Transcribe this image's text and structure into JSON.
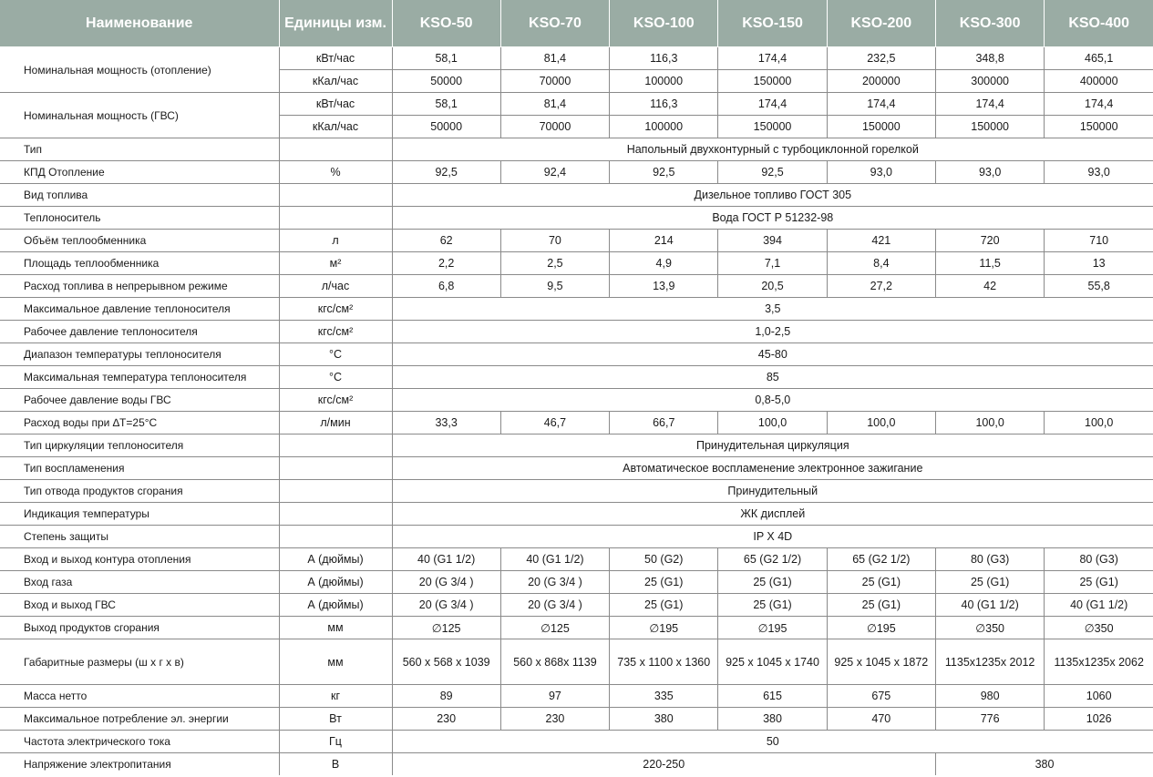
{
  "header": [
    "Наименование",
    "Единицы изм.",
    "KSO-50",
    "KSO-70",
    "KSO-100",
    "KSO-150",
    "KSO-200",
    "KSO-300",
    "KSO-400"
  ],
  "colors": {
    "header_bg": "#9aaca4",
    "header_text": "#ffffff",
    "grid": "#8a8a8a"
  },
  "rows": [
    {
      "name": "Номинальная мощность (отопление)",
      "lines": [
        {
          "unit": "кВт/час",
          "values": [
            "58,1",
            "81,4",
            "116,3",
            "174,4",
            "232,5",
            "348,8",
            "465,1"
          ]
        },
        {
          "unit": "кКал/час",
          "values": [
            "50000",
            "70000",
            "100000",
            "150000",
            "200000",
            "300000",
            "400000"
          ]
        }
      ]
    },
    {
      "name": "Номинальная мощность (ГВС)",
      "lines": [
        {
          "unit": "кВт/час",
          "values": [
            "58,1",
            "81,4",
            "116,3",
            "174,4",
            "174,4",
            "174,4",
            "174,4"
          ]
        },
        {
          "unit": "кКал/час",
          "values": [
            "50000",
            "70000",
            "100000",
            "150000",
            "150000",
            "150000",
            "150000"
          ]
        }
      ]
    },
    {
      "name": "Тип",
      "lines": [
        {
          "unit": "",
          "spans": [
            {
              "text": "Напольный двухконтурный  с турбоциклонной горелкой",
              "cols": 7
            }
          ]
        }
      ]
    },
    {
      "name": "КПД   Отопление",
      "lines": [
        {
          "unit": "%",
          "values": [
            "92,5",
            "92,4",
            "92,5",
            "92,5",
            "93,0",
            "93,0",
            "93,0"
          ]
        }
      ]
    },
    {
      "name": "Вид топлива",
      "lines": [
        {
          "unit": "",
          "spans": [
            {
              "text": "Дизельное   топливо  ГОСТ  305",
              "cols": 7
            }
          ]
        }
      ]
    },
    {
      "name": "Теплоноситель",
      "lines": [
        {
          "unit": "",
          "spans": [
            {
              "text": "Вода ГОСТ Р 51232-98",
              "cols": 7
            }
          ]
        }
      ]
    },
    {
      "name": "Объём   теплообменника",
      "lines": [
        {
          "unit": "л",
          "values": [
            "62",
            "70",
            "214",
            "394",
            "421",
            "720",
            "710"
          ]
        }
      ]
    },
    {
      "name": "Площадь теплообменника",
      "lines": [
        {
          "unit": "м²",
          "values": [
            "2,2",
            "2,5",
            "4,9",
            "7,1",
            "8,4",
            "11,5",
            "13"
          ]
        }
      ]
    },
    {
      "name": "Расход топлива  в непрерывном режиме",
      "lines": [
        {
          "unit": "л/час",
          "values": [
            "6,8",
            "9,5",
            "13,9",
            "20,5",
            "27,2",
            "42",
            "55,8"
          ]
        }
      ]
    },
    {
      "name": "Максимальное давление теплоносителя",
      "lines": [
        {
          "unit": "кгс/см²",
          "spans": [
            {
              "text": "3,5",
              "cols": 7
            }
          ]
        }
      ]
    },
    {
      "name": "Рабочее давление теплоносителя",
      "lines": [
        {
          "unit": "кгс/см²",
          "spans": [
            {
              "text": "1,0-2,5",
              "cols": 7
            }
          ]
        }
      ]
    },
    {
      "name": "Диапазон температуры теплоносителя",
      "lines": [
        {
          "unit": "°С",
          "spans": [
            {
              "text": "45-80",
              "cols": 7
            }
          ]
        }
      ]
    },
    {
      "name": "Максимальная температура теплоносителя",
      "lines": [
        {
          "unit": "°С",
          "spans": [
            {
              "text": "85",
              "cols": 7
            }
          ]
        }
      ]
    },
    {
      "name": "Рабочее давление воды ГВС",
      "lines": [
        {
          "unit": "кгс/см²",
          "spans": [
            {
              "text": "0,8-5,0",
              "cols": 7
            }
          ]
        }
      ]
    },
    {
      "name": "Расход воды при ∆Т=25°С",
      "lines": [
        {
          "unit": "л/мин",
          "values": [
            "33,3",
            "46,7",
            "66,7",
            "100,0",
            "100,0",
            "100,0",
            "100,0"
          ]
        }
      ]
    },
    {
      "name": "Тип циркуляции теплоносителя",
      "lines": [
        {
          "unit": "",
          "spans": [
            {
              "text": "Принудительная  циркуляция",
              "cols": 7
            }
          ]
        }
      ]
    },
    {
      "name": "Тип воспламенения",
      "lines": [
        {
          "unit": "",
          "spans": [
            {
              "text": "Автоматическое воспламенение электронное зажигание",
              "cols": 7
            }
          ]
        }
      ]
    },
    {
      "name": "Тип отвода продуктов сгорания",
      "lines": [
        {
          "unit": "",
          "spans": [
            {
              "text": "Принудительный",
              "cols": 7
            }
          ]
        }
      ]
    },
    {
      "name": "Индикация   температуры",
      "lines": [
        {
          "unit": "",
          "spans": [
            {
              "text": "ЖК  дисплей",
              "cols": 7
            }
          ]
        }
      ]
    },
    {
      "name": "Степень защиты",
      "lines": [
        {
          "unit": "",
          "spans": [
            {
              "text": "IP X 4D",
              "cols": 7
            }
          ]
        }
      ]
    },
    {
      "name": "Вход и выход контура отопления",
      "lines": [
        {
          "unit": "А (дюймы)",
          "values": [
            "40 (G1 1/2)",
            "40 (G1 1/2)",
            "50 (G2)",
            "65 (G2 1/2)",
            "65 (G2 1/2)",
            "80 (G3)",
            "80 (G3)"
          ]
        }
      ]
    },
    {
      "name": "Вход газа",
      "lines": [
        {
          "unit": "А (дюймы)",
          "values": [
            "20 (G 3/4 )",
            "20 (G 3/4 )",
            "25 (G1)",
            "25 (G1)",
            "25 (G1)",
            "25 (G1)",
            "25 (G1)"
          ]
        }
      ]
    },
    {
      "name": "Вход и выход ГВС",
      "lines": [
        {
          "unit": "А (дюймы)",
          "values": [
            "20 (G 3/4 )",
            "20 (G 3/4 )",
            "25 (G1)",
            "25 (G1)",
            "25 (G1)",
            "40 (G1 1/2)",
            "40 (G1 1/2)"
          ]
        }
      ]
    },
    {
      "name": "Выход продуктов сгорания",
      "lines": [
        {
          "unit": "мм",
          "values": [
            "∅125",
            "∅125",
            "∅195",
            "∅195",
            "∅195",
            "∅350",
            "∅350"
          ]
        }
      ]
    },
    {
      "name": "Габаритные размеры (ш  х г х в)",
      "tall": true,
      "lines": [
        {
          "unit": "мм",
          "values": [
            "560 х 568 х 1039",
            "560 х 868х 1139",
            "735 х 1100 х 1360",
            "925 х 1045 х 1740",
            "925 х 1045 х 1872",
            "1135х1235х 2012",
            "1135х1235х 2062"
          ]
        }
      ]
    },
    {
      "name": "Масса нетто",
      "lines": [
        {
          "unit": "кг",
          "values": [
            "89",
            "97",
            "335",
            "615",
            "675",
            "980",
            "1060"
          ]
        }
      ]
    },
    {
      "name": "Максимальное потребление эл. энергии",
      "lines": [
        {
          "unit": "Вт",
          "values": [
            "230",
            "230",
            "380",
            "380",
            "470",
            "776",
            "1026"
          ]
        }
      ]
    },
    {
      "name": "Частота электрического тока",
      "lines": [
        {
          "unit": "Гц",
          "spans": [
            {
              "text": "50",
              "cols": 7
            }
          ]
        }
      ]
    },
    {
      "name": "Напряжение электропитания",
      "lines": [
        {
          "unit": "В",
          "spans": [
            {
              "text": "220-250",
              "cols": 5
            },
            {
              "text": "380",
              "cols": 2
            }
          ]
        }
      ]
    }
  ]
}
